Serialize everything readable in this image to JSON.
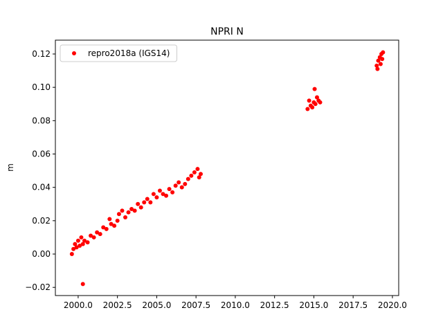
{
  "chart_data": {
    "type": "scatter",
    "title": "NPRI N",
    "y_label": "m",
    "series": [
      {
        "name": "repro2018a (IGS14)",
        "color": "#ff0000",
        "x": [
          1999.6,
          1999.7,
          1999.8,
          1999.9,
          2000.0,
          2000.1,
          2000.2,
          2000.3,
          2000.3,
          2000.4,
          2000.6,
          2000.8,
          2001.0,
          2001.2,
          2001.4,
          2001.6,
          2001.8,
          2002.0,
          2002.1,
          2002.3,
          2002.5,
          2002.6,
          2002.8,
          2003.0,
          2003.2,
          2003.4,
          2003.6,
          2003.8,
          2004.0,
          2004.2,
          2004.4,
          2004.6,
          2004.8,
          2005.0,
          2005.2,
          2005.4,
          2005.6,
          2005.8,
          2006.0,
          2006.2,
          2006.4,
          2006.6,
          2006.8,
          2007.0,
          2007.2,
          2007.4,
          2007.6,
          2007.7,
          2007.8,
          2014.6,
          2014.7,
          2014.8,
          2014.9,
          2015.0,
          2015.05,
          2015.1,
          2015.2,
          2015.3,
          2015.4,
          2019.0,
          2019.05,
          2019.1,
          2019.2,
          2019.25,
          2019.3,
          2019.35,
          2019.4
        ],
        "values": [
          0.0,
          0.003,
          0.006,
          0.004,
          0.008,
          0.005,
          0.01,
          0.006,
          -0.018,
          0.008,
          0.007,
          0.011,
          0.01,
          0.013,
          0.012,
          0.016,
          0.015,
          0.021,
          0.018,
          0.017,
          0.02,
          0.024,
          0.026,
          0.022,
          0.025,
          0.027,
          0.026,
          0.03,
          0.028,
          0.031,
          0.033,
          0.031,
          0.036,
          0.034,
          0.038,
          0.036,
          0.035,
          0.039,
          0.037,
          0.041,
          0.043,
          0.04,
          0.042,
          0.045,
          0.047,
          0.049,
          0.051,
          0.046,
          0.048,
          0.087,
          0.092,
          0.089,
          0.088,
          0.091,
          0.099,
          0.09,
          0.094,
          0.092,
          0.091,
          0.113,
          0.111,
          0.116,
          0.118,
          0.114,
          0.12,
          0.117,
          0.121
        ]
      }
    ],
    "xlim": [
      1998.55,
      2020.4
    ],
    "ylim": [
      -0.0249,
      0.1283
    ],
    "xticks": [
      {
        "value": 2000,
        "label": "2000.0"
      },
      {
        "value": 2002.5,
        "label": "2002.5"
      },
      {
        "value": 2005,
        "label": "2005.0"
      },
      {
        "value": 2007.5,
        "label": "2007.5"
      },
      {
        "value": 2010,
        "label": "2010.0"
      },
      {
        "value": 2012.5,
        "label": "2012.5"
      },
      {
        "value": 2015,
        "label": "2015.0"
      },
      {
        "value": 2017.5,
        "label": "2017.5"
      },
      {
        "value": 2020,
        "label": "2020.0"
      }
    ],
    "yticks": [
      {
        "value": -0.02,
        "label": "−0.02"
      },
      {
        "value": 0,
        "label": "0.00"
      },
      0.02,
      0.04,
      0.06,
      0.08,
      {
        "value": 0.1,
        "label": "0.10"
      },
      0.12
    ],
    "legend": "upper left",
    "grid": false
  }
}
